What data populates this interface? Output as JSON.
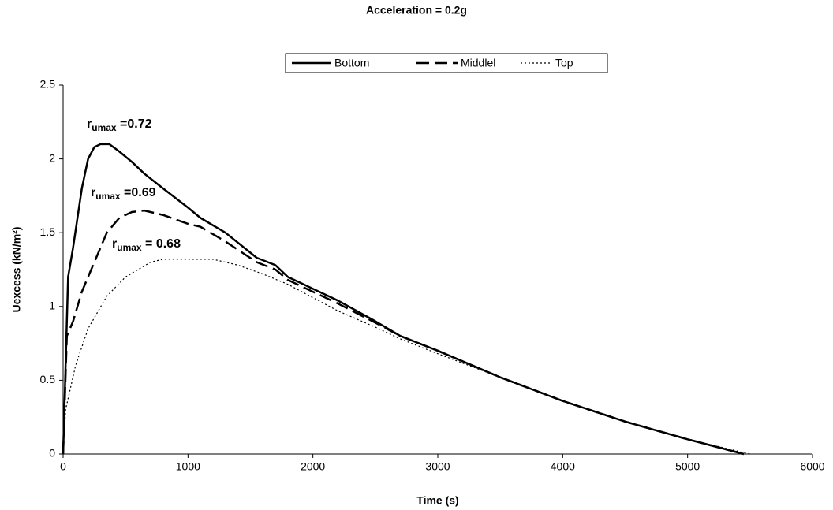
{
  "chart_data": {
    "type": "line",
    "title": "Acceleration = 0.2g",
    "x_label": "Time (s)",
    "y_label": "Uexcess (kN/m²)",
    "xlim": [
      0,
      6000
    ],
    "ylim": [
      0,
      2.5
    ],
    "xticks": [
      0,
      1000,
      2000,
      3000,
      4000,
      5000,
      6000
    ],
    "yticks": [
      0,
      0.5,
      1,
      1.5,
      2,
      2.5
    ],
    "grid": false,
    "legend": "top",
    "series": [
      {
        "name": "Bottom",
        "color": "#000000",
        "dash": "solid",
        "x": [
          0,
          20,
          40,
          80,
          150,
          200,
          250,
          300,
          370,
          450,
          550,
          650,
          800,
          1000,
          1100,
          1300,
          1550,
          1700,
          1800,
          2000,
          2200,
          2500,
          2700,
          3000,
          3500,
          4000,
          4500,
          5000,
          5450
        ],
        "values": [
          0,
          0.6,
          1.2,
          1.4,
          1.8,
          2.0,
          2.08,
          2.1,
          2.1,
          2.05,
          1.98,
          1.9,
          1.8,
          1.67,
          1.6,
          1.5,
          1.33,
          1.28,
          1.2,
          1.12,
          1.04,
          0.9,
          0.8,
          0.7,
          0.52,
          0.36,
          0.22,
          0.1,
          0
        ]
      },
      {
        "name": "Middlel",
        "color": "#000000",
        "dash": "dashed",
        "x": [
          0,
          30,
          80,
          150,
          250,
          350,
          450,
          550,
          650,
          800,
          1000,
          1100,
          1300,
          1550,
          1700,
          1800,
          2000,
          2200,
          2500,
          2700,
          3000,
          3500,
          4000,
          4500,
          5000,
          5450
        ],
        "values": [
          0,
          0.8,
          0.9,
          1.1,
          1.3,
          1.5,
          1.6,
          1.64,
          1.65,
          1.62,
          1.56,
          1.54,
          1.44,
          1.3,
          1.25,
          1.18,
          1.1,
          1.02,
          0.89,
          0.8,
          0.7,
          0.52,
          0.36,
          0.22,
          0.1,
          0
        ]
      },
      {
        "name": "Top",
        "color": "#000000",
        "dash": "dotted",
        "x": [
          0,
          20,
          100,
          200,
          350,
          500,
          700,
          800,
          1200,
          1400,
          1600,
          1800,
          2000,
          2200,
          2500,
          2700,
          3000,
          3500,
          4000,
          4500,
          5000,
          5500
        ],
        "values": [
          0,
          0.3,
          0.6,
          0.85,
          1.07,
          1.2,
          1.3,
          1.32,
          1.32,
          1.28,
          1.22,
          1.15,
          1.06,
          0.97,
          0.86,
          0.78,
          0.68,
          0.52,
          0.36,
          0.22,
          0.1,
          0
        ]
      }
    ],
    "annotations": [
      {
        "base": "r",
        "sub": "umax",
        "text": " =0.72"
      },
      {
        "base": "r",
        "sub": "umax",
        "text": " =0.69"
      },
      {
        "base": "r",
        "sub": "umax",
        "text": " = 0.68"
      }
    ]
  }
}
